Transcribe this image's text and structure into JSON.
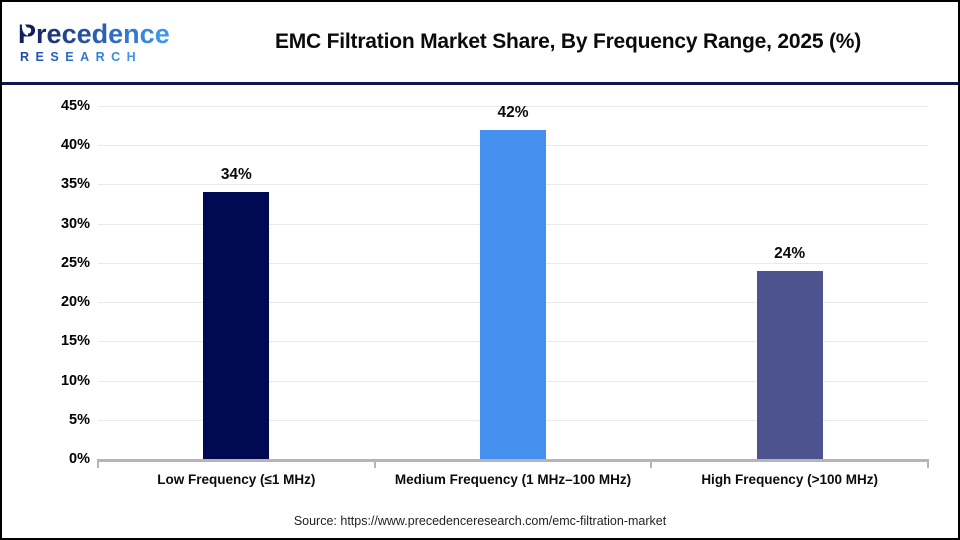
{
  "header": {
    "logo_line1": "Precedence",
    "logo_line2": "RESEARCH",
    "title": "EMC Filtration Market Share, By Frequency Range, 2025 (%)"
  },
  "chart_data": {
    "type": "bar",
    "title": "EMC Filtration Market Share, By Frequency Range, 2025 (%)",
    "categories": [
      "Low Frequency (≤1 MHz)",
      "Medium Frequency (1 MHz–100 MHz)",
      "High Frequency (>100 MHz)"
    ],
    "values": [
      34,
      42,
      24
    ],
    "value_labels": [
      "34%",
      "42%",
      "24%"
    ],
    "bar_colors": [
      "#000a52",
      "#4590ee",
      "#4c538f"
    ],
    "xlabel": "",
    "ylabel": "",
    "ylim": [
      0,
      45
    ],
    "ytick_step": 5,
    "yticks": [
      "0%",
      "5%",
      "10%",
      "15%",
      "20%",
      "25%",
      "30%",
      "35%",
      "40%",
      "45%"
    ],
    "grid": "horizontal-light-gray",
    "legend": "none"
  },
  "footer": {
    "source": "Source: https://www.precedenceresearch.com/emc-filtration-market"
  },
  "colors": {
    "logo_navy": "#131c5e",
    "logo_blue": "#3f96ea",
    "research_from": "#1f4bb0",
    "research_to": "#3f96ea",
    "divider": "#12174f",
    "gridline": "#e9e9e9",
    "axis": "#b5b5b5"
  }
}
